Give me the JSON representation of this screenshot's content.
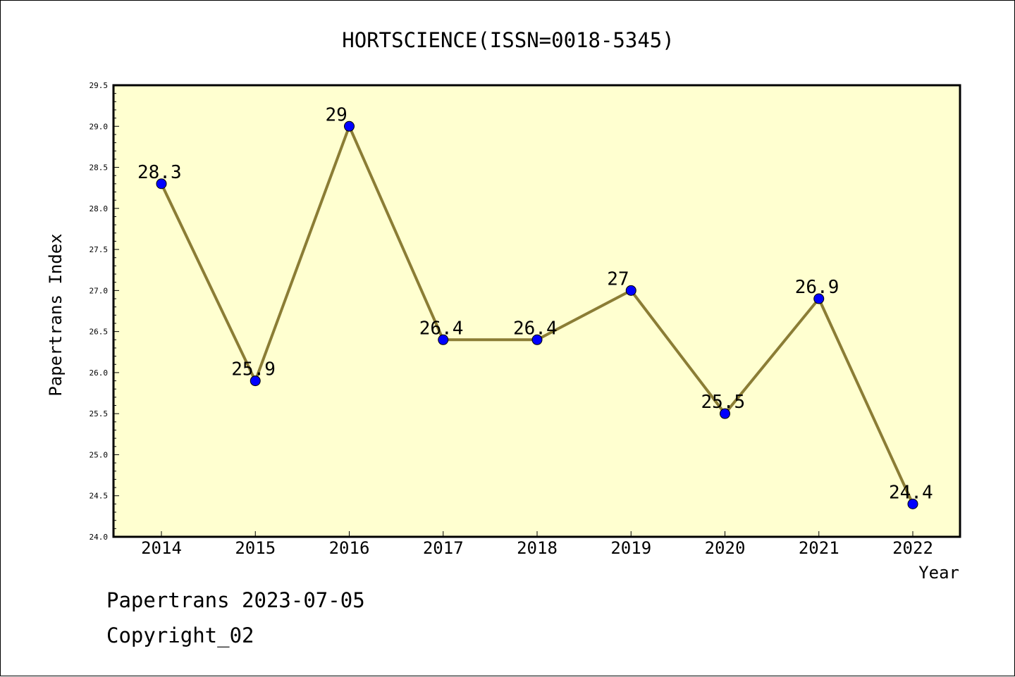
{
  "chart_data": {
    "type": "line",
    "title": "HORTSCIENCE(ISSN=0018-5345)",
    "xlabel": "Year",
    "ylabel": "Papertrans Index",
    "categories": [
      "2014",
      "2015",
      "2016",
      "2017",
      "2018",
      "2019",
      "2020",
      "2021",
      "2022"
    ],
    "values": [
      28.3,
      25.9,
      29,
      26.4,
      26.4,
      27,
      25.5,
      26.9,
      24.4
    ],
    "data_labels": [
      "28.3",
      "25.9",
      "29",
      "26.4",
      "26.4",
      "27",
      "25.5",
      "26.9",
      "24.4"
    ],
    "ylim": [
      24.0,
      29.5
    ],
    "yticks": [
      "24.0",
      "24.5",
      "25.0",
      "25.5",
      "26.0",
      "26.5",
      "27.0",
      "27.5",
      "28.0",
      "28.5",
      "29.0",
      "29.5"
    ],
    "grid": false,
    "colors": {
      "plot_background": "#ffffd0",
      "line": "#8b7d35",
      "marker": "#0000ff"
    }
  },
  "footer": {
    "line1": "Papertrans 2023-07-05",
    "line2": "Copyright_02"
  }
}
